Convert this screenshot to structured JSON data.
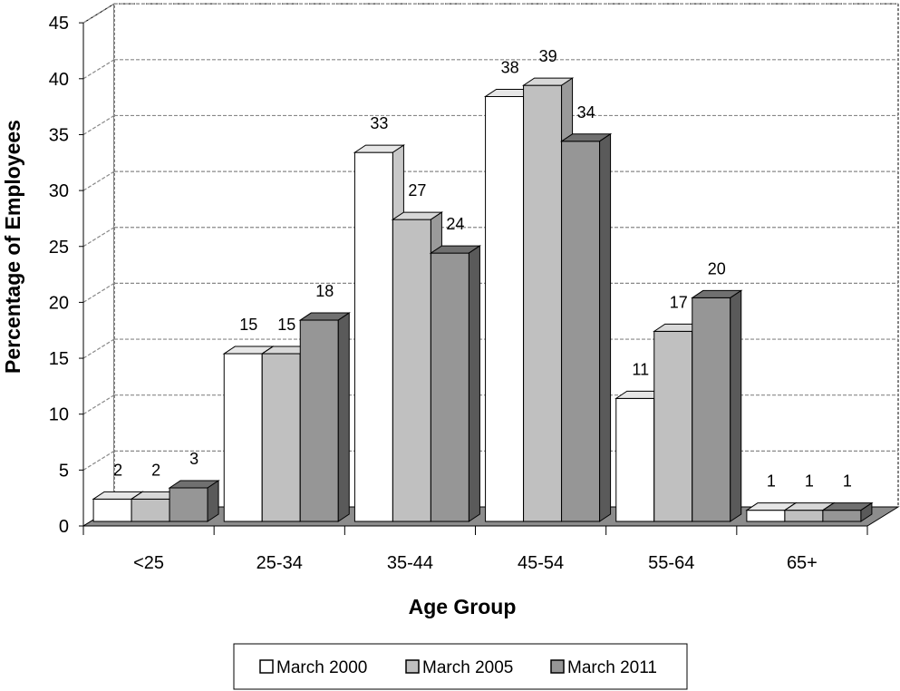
{
  "chart_data": {
    "type": "bar",
    "style": "3d-clustered-column",
    "title": "",
    "xlabel": "Age Group",
    "ylabel": "Percentage of Employees",
    "categories": [
      "<25",
      "25-34",
      "35-44",
      "45-54",
      "55-64",
      "65+"
    ],
    "series": [
      {
        "name": "March 2000",
        "values": [
          2,
          15,
          33,
          38,
          11,
          1
        ]
      },
      {
        "name": "March 2005",
        "values": [
          2,
          15,
          27,
          39,
          17,
          1
        ]
      },
      {
        "name": "March 2011",
        "values": [
          3,
          18,
          24,
          34,
          20,
          1
        ]
      }
    ],
    "y_ticks": [
      "0",
      "5",
      "10",
      "15",
      "20",
      "25",
      "30",
      "35",
      "40",
      "45"
    ],
    "ylim": [
      0,
      45
    ],
    "grid": "dashed horizontal",
    "legend_position": "bottom",
    "colors": {
      "series": [
        "#ffffff",
        "#c0c0c0",
        "#969696"
      ],
      "top": [
        "#e6e6e6",
        "#d8d8d8",
        "#707070"
      ],
      "side": [
        "#c8c8c8",
        "#9a9a9a",
        "#5a5a5a"
      ],
      "floor": "#8c8c8c",
      "grid": "#888888"
    }
  }
}
